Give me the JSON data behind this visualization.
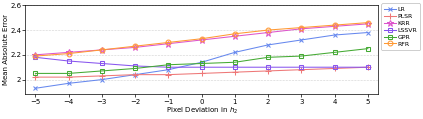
{
  "x": [
    -5,
    -4,
    -3,
    -2,
    -1,
    0,
    1,
    2,
    3,
    4,
    5
  ],
  "LR": [
    1.93,
    1.97,
    2.0,
    2.04,
    2.08,
    2.14,
    2.22,
    2.28,
    2.32,
    2.36,
    2.38
  ],
  "PLSR": [
    2.02,
    2.02,
    2.03,
    2.04,
    2.04,
    2.05,
    2.06,
    2.07,
    2.08,
    2.09,
    2.1
  ],
  "KRR": [
    2.2,
    2.22,
    2.24,
    2.26,
    2.29,
    2.32,
    2.35,
    2.38,
    2.41,
    2.43,
    2.45
  ],
  "LSSVR": [
    2.18,
    2.15,
    2.13,
    2.11,
    2.1,
    2.1,
    2.1,
    2.1,
    2.1,
    2.1,
    2.1
  ],
  "GPR": [
    2.05,
    2.05,
    2.07,
    2.09,
    2.12,
    2.13,
    2.14,
    2.18,
    2.19,
    2.22,
    2.25
  ],
  "RFR": [
    2.19,
    2.21,
    2.24,
    2.27,
    2.3,
    2.33,
    2.37,
    2.4,
    2.42,
    2.44,
    2.46
  ],
  "colors": {
    "LR": "#6688ee",
    "PLSR": "#ee7777",
    "KRR": "#dd55cc",
    "LSSVR": "#8855ee",
    "GPR": "#44aa33",
    "RFR": "#ff9933"
  },
  "markers": {
    "LR": "x",
    "PLSR": "+",
    "KRR": "*",
    "LSSVR": "s",
    "GPR": "s",
    "RFR": "o"
  },
  "marker_sizes": {
    "LR": 3.5,
    "PLSR": 4.5,
    "KRR": 4.5,
    "LSSVR": 2.5,
    "GPR": 3.0,
    "RFR": 3.5
  },
  "xlabel": "Pixel Deviation in $h_2$",
  "ylabel": "Mean Absolute Error",
  "ylim": [
    1.88,
    2.6
  ],
  "yticks": [
    2.0,
    2.2,
    2.4,
    2.6
  ],
  "ytick_labels": [
    "2",
    "2.2",
    "2.4",
    "2.6"
  ],
  "xlim": [
    -5.3,
    5.3
  ],
  "xticks": [
    -5,
    -4,
    -3,
    -2,
    -1,
    0,
    1,
    2,
    3,
    4,
    5
  ],
  "series_order": [
    "LR",
    "PLSR",
    "KRR",
    "LSSVR",
    "GPR",
    "RFR"
  ]
}
